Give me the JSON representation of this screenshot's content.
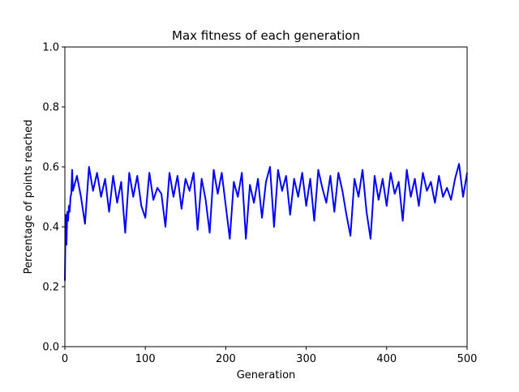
{
  "chart_data": {
    "type": "line",
    "title": "Max fitness of each generation",
    "xlabel": "Generation",
    "ylabel": "Percentage of points reached",
    "color": "#0000ff",
    "x": [
      0,
      1,
      2,
      3,
      4,
      5,
      6,
      7,
      8,
      9,
      10,
      15,
      20,
      25,
      30,
      35,
      40,
      45,
      50,
      55,
      60,
      65,
      70,
      75,
      80,
      85,
      90,
      95,
      100,
      105,
      110,
      115,
      120,
      125,
      130,
      135,
      140,
      145,
      150,
      155,
      160,
      165,
      170,
      175,
      180,
      185,
      190,
      195,
      200,
      205,
      210,
      215,
      220,
      225,
      230,
      235,
      240,
      245,
      250,
      255,
      260,
      265,
      270,
      275,
      280,
      285,
      290,
      295,
      300,
      305,
      310,
      315,
      320,
      325,
      330,
      335,
      340,
      345,
      350,
      355,
      360,
      365,
      370,
      375,
      380,
      385,
      390,
      395,
      400,
      405,
      410,
      415,
      420,
      425,
      430,
      435,
      440,
      445,
      450,
      455,
      460,
      465,
      470,
      475,
      480,
      485,
      490,
      495,
      500
    ],
    "values": [
      0.22,
      0.44,
      0.34,
      0.45,
      0.42,
      0.47,
      0.45,
      0.5,
      0.51,
      0.59,
      0.52,
      0.57,
      0.5,
      0.41,
      0.6,
      0.52,
      0.58,
      0.5,
      0.56,
      0.45,
      0.57,
      0.48,
      0.55,
      0.38,
      0.58,
      0.5,
      0.57,
      0.47,
      0.43,
      0.58,
      0.49,
      0.53,
      0.51,
      0.4,
      0.58,
      0.5,
      0.57,
      0.46,
      0.56,
      0.52,
      0.58,
      0.39,
      0.56,
      0.49,
      0.38,
      0.59,
      0.51,
      0.58,
      0.47,
      0.36,
      0.55,
      0.5,
      0.58,
      0.36,
      0.54,
      0.48,
      0.56,
      0.43,
      0.55,
      0.6,
      0.4,
      0.59,
      0.52,
      0.57,
      0.44,
      0.56,
      0.5,
      0.58,
      0.47,
      0.56,
      0.42,
      0.59,
      0.53,
      0.48,
      0.57,
      0.45,
      0.58,
      0.52,
      0.44,
      0.37,
      0.56,
      0.5,
      0.59,
      0.45,
      0.36,
      0.57,
      0.49,
      0.56,
      0.47,
      0.58,
      0.51,
      0.55,
      0.42,
      0.59,
      0.5,
      0.56,
      0.47,
      0.58,
      0.52,
      0.55,
      0.48,
      0.57,
      0.5,
      0.53,
      0.49,
      0.56,
      0.61,
      0.5,
      0.58
    ],
    "xlim": [
      0,
      500
    ],
    "ylim": [
      0,
      1
    ],
    "xticks": [
      0,
      100,
      200,
      300,
      400,
      500
    ],
    "yticks": [
      {
        "value": 0,
        "label": "0.0"
      },
      0.2,
      0.4,
      0.6,
      0.8,
      {
        "value": 1,
        "label": "1.0"
      }
    ]
  }
}
